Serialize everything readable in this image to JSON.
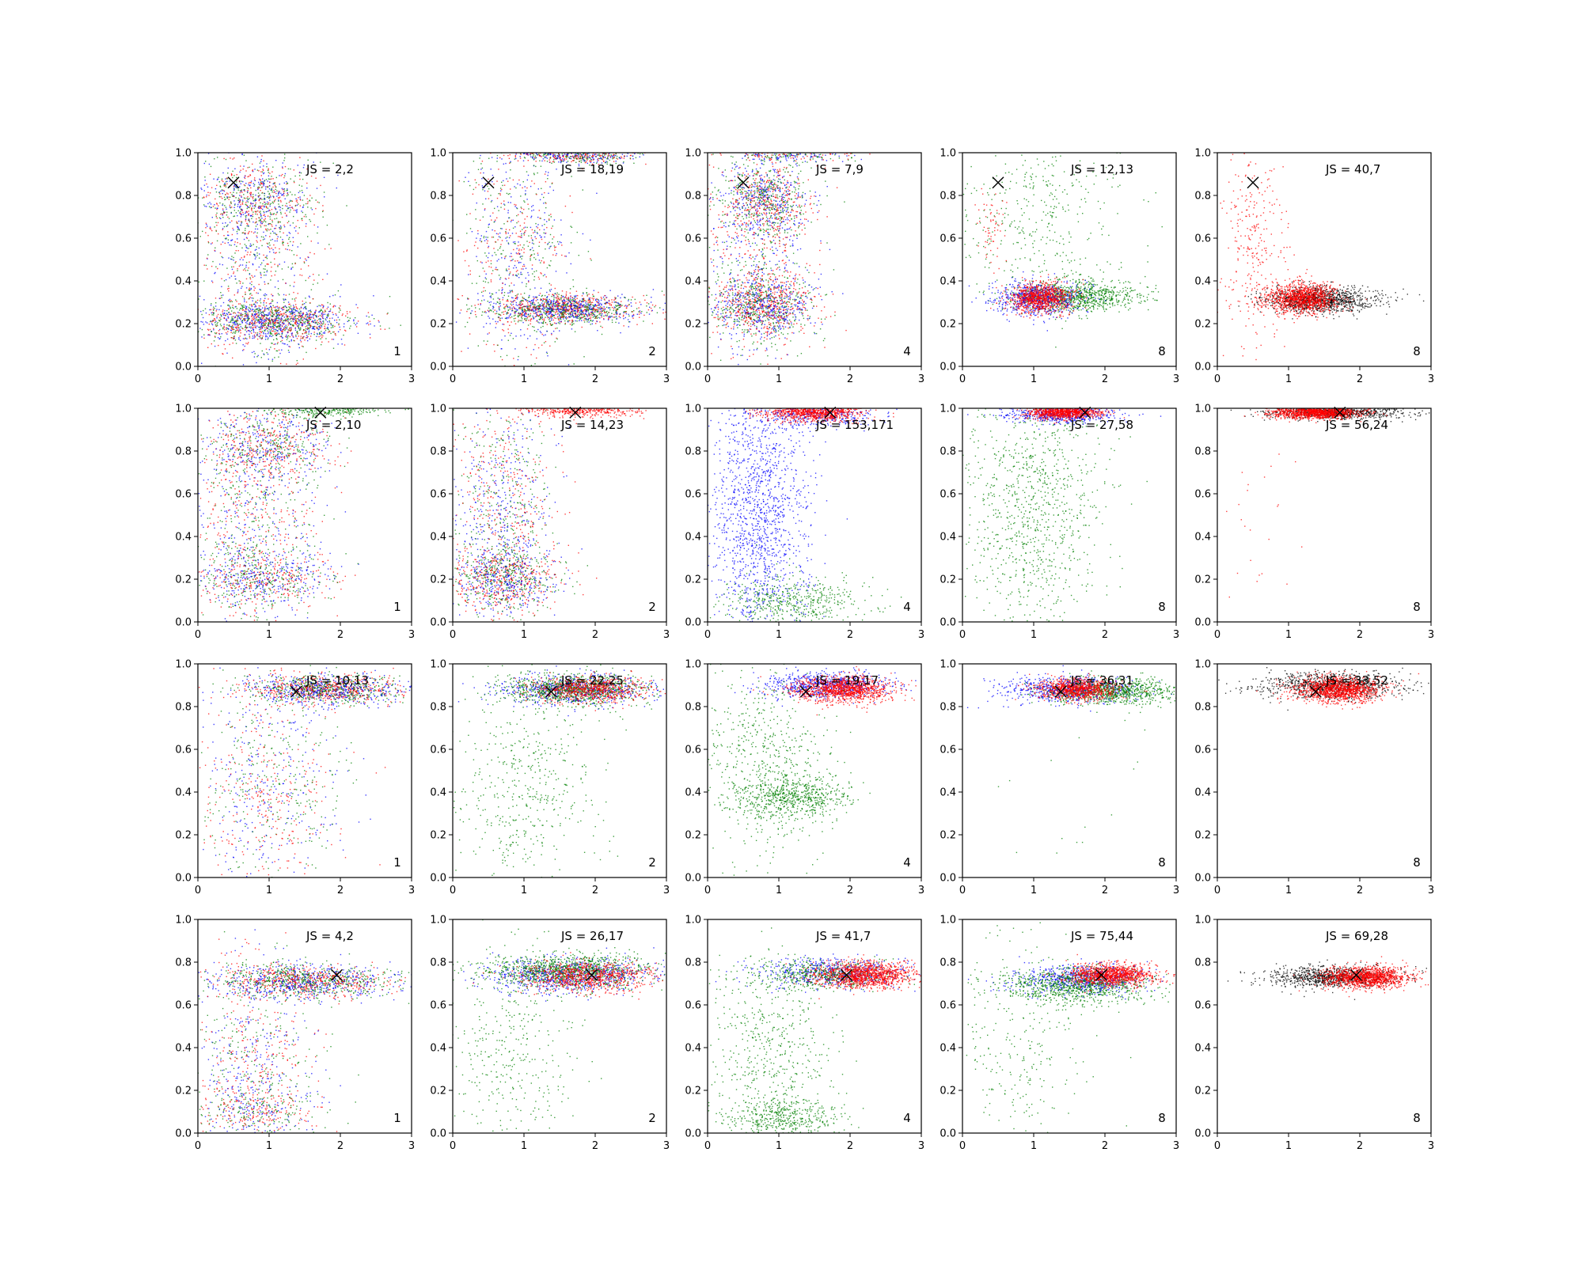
{
  "chart_data": {
    "type": "scatter",
    "layout": "4x5 grid of scatter subplots",
    "marker": "X",
    "xlim": [
      0,
      3
    ],
    "ylim": [
      0,
      1.0
    ],
    "xticks": [
      "0",
      "1",
      "2",
      "3"
    ],
    "yticks": [
      "0.0",
      "0.2",
      "0.4",
      "0.6",
      "0.8",
      "1.0"
    ],
    "grid": false,
    "series_colors": {
      "blue": "#0000ff",
      "green": "#008000",
      "red": "#ff0000",
      "black": "#000000"
    },
    "panels": [
      {
        "row": 0,
        "col": 0,
        "js_label": "JS = 2,2",
        "corner_label": "1",
        "marker_x": 0.5,
        "marker_y": 0.86,
        "clusters": [
          {
            "color": "mix_bgr",
            "cx": 1.1,
            "cy": 0.21,
            "sx": 0.55,
            "sy": 0.05,
            "n": 1500
          },
          {
            "color": "mix_bgr",
            "cx": 0.8,
            "cy": 0.78,
            "sx": 0.4,
            "sy": 0.09,
            "n": 700
          },
          {
            "color": "mix_bgr",
            "cx": 0.8,
            "cy": 0.5,
            "sx": 0.45,
            "sy": 0.28,
            "n": 900
          }
        ]
      },
      {
        "row": 0,
        "col": 1,
        "js_label": "JS = 18,19",
        "corner_label": "2",
        "marker_x": 0.5,
        "marker_y": 0.86,
        "clusters": [
          {
            "color": "mix_bgr",
            "cx": 1.6,
            "cy": 0.27,
            "sx": 0.5,
            "sy": 0.035,
            "n": 1500
          },
          {
            "color": "mix_bgr",
            "cx": 1.8,
            "cy": 0.99,
            "sx": 0.45,
            "sy": 0.02,
            "n": 600
          },
          {
            "color": "mix_bgr",
            "cx": 0.9,
            "cy": 0.55,
            "sx": 0.4,
            "sy": 0.3,
            "n": 900
          }
        ]
      },
      {
        "row": 0,
        "col": 2,
        "js_label": "JS = 7,9",
        "corner_label": "4",
        "marker_x": 0.5,
        "marker_y": 0.86,
        "clusters": [
          {
            "color": "mix_bgr",
            "cx": 0.8,
            "cy": 0.28,
            "sx": 0.35,
            "sy": 0.07,
            "n": 1200
          },
          {
            "color": "mix_bgr",
            "cx": 0.8,
            "cy": 0.78,
            "sx": 0.3,
            "sy": 0.09,
            "n": 900
          },
          {
            "color": "mix_bgr",
            "cx": 0.7,
            "cy": 0.5,
            "sx": 0.4,
            "sy": 0.3,
            "n": 900
          },
          {
            "color": "mix_bgr",
            "cx": 1.2,
            "cy": 0.99,
            "sx": 0.4,
            "sy": 0.015,
            "n": 250
          }
        ]
      },
      {
        "row": 0,
        "col": 3,
        "js_label": "JS = 12,13",
        "corner_label": "8",
        "marker_x": 0.5,
        "marker_y": 0.86,
        "clusters": [
          {
            "color": "green",
            "cx": 1.6,
            "cy": 0.33,
            "sx": 0.45,
            "sy": 0.035,
            "n": 900
          },
          {
            "color": "blue",
            "cx": 1.05,
            "cy": 0.32,
            "sx": 0.3,
            "sy": 0.04,
            "n": 700
          },
          {
            "color": "red",
            "cx": 1.1,
            "cy": 0.32,
            "sx": 0.22,
            "sy": 0.035,
            "n": 900
          },
          {
            "color": "green",
            "cx": 1.0,
            "cy": 0.7,
            "sx": 0.6,
            "sy": 0.2,
            "n": 400
          },
          {
            "color": "red",
            "cx": 0.4,
            "cy": 0.65,
            "sx": 0.1,
            "sy": 0.1,
            "n": 60
          }
        ]
      },
      {
        "row": 0,
        "col": 4,
        "js_label": "JS = 40,7",
        "corner_label": "8",
        "marker_x": 0.5,
        "marker_y": 0.86,
        "clusters": [
          {
            "color": "black",
            "cx": 1.45,
            "cy": 0.31,
            "sx": 0.38,
            "sy": 0.03,
            "n": 1100
          },
          {
            "color": "red",
            "cx": 1.2,
            "cy": 0.32,
            "sx": 0.25,
            "sy": 0.035,
            "n": 1200
          },
          {
            "color": "red",
            "cx": 0.5,
            "cy": 0.6,
            "sx": 0.25,
            "sy": 0.25,
            "n": 300
          }
        ]
      },
      {
        "row": 1,
        "col": 0,
        "js_label": "JS = 2,10",
        "corner_label": "1",
        "marker_x": 1.72,
        "marker_y": 0.98,
        "clusters": [
          {
            "color": "mix_bgr",
            "cx": 0.9,
            "cy": 0.2,
            "sx": 0.5,
            "sy": 0.06,
            "n": 700
          },
          {
            "color": "mix_bgr",
            "cx": 1.0,
            "cy": 0.82,
            "sx": 0.45,
            "sy": 0.08,
            "n": 700
          },
          {
            "color": "mix_bgr",
            "cx": 0.8,
            "cy": 0.5,
            "sx": 0.5,
            "sy": 0.3,
            "n": 1100
          },
          {
            "color": "green",
            "cx": 1.8,
            "cy": 0.99,
            "sx": 0.4,
            "sy": 0.015,
            "n": 250
          }
        ]
      },
      {
        "row": 1,
        "col": 1,
        "js_label": "JS = 14,23",
        "corner_label": "2",
        "marker_x": 1.72,
        "marker_y": 0.98,
        "clusters": [
          {
            "color": "mix_bgr",
            "cx": 0.7,
            "cy": 0.2,
            "sx": 0.4,
            "sy": 0.07,
            "n": 900
          },
          {
            "color": "mix_bgr",
            "cx": 0.7,
            "cy": 0.5,
            "sx": 0.35,
            "sy": 0.3,
            "n": 1200
          },
          {
            "color": "red",
            "cx": 1.8,
            "cy": 0.99,
            "sx": 0.4,
            "sy": 0.015,
            "n": 400
          }
        ]
      },
      {
        "row": 1,
        "col": 2,
        "js_label": "JS = 153,171",
        "corner_label": "4",
        "marker_x": 1.72,
        "marker_y": 0.98,
        "clusters": [
          {
            "color": "blue",
            "cx": 0.7,
            "cy": 0.5,
            "sx": 0.35,
            "sy": 0.3,
            "n": 1400
          },
          {
            "color": "green",
            "cx": 1.2,
            "cy": 0.1,
            "sx": 0.5,
            "sy": 0.06,
            "n": 500
          },
          {
            "color": "blue",
            "cx": 1.5,
            "cy": 0.97,
            "sx": 0.45,
            "sy": 0.03,
            "n": 400
          },
          {
            "color": "red",
            "cx": 1.5,
            "cy": 0.98,
            "sx": 0.35,
            "sy": 0.02,
            "n": 900
          }
        ]
      },
      {
        "row": 1,
        "col": 3,
        "js_label": "JS = 27,58",
        "corner_label": "8",
        "marker_x": 1.72,
        "marker_y": 0.98,
        "clusters": [
          {
            "color": "green",
            "cx": 1.0,
            "cy": 0.55,
            "sx": 0.5,
            "sy": 0.3,
            "n": 1000
          },
          {
            "color": "blue",
            "cx": 1.4,
            "cy": 0.97,
            "sx": 0.4,
            "sy": 0.02,
            "n": 500
          },
          {
            "color": "red",
            "cx": 1.4,
            "cy": 0.98,
            "sx": 0.25,
            "sy": 0.015,
            "n": 900
          }
        ]
      },
      {
        "row": 1,
        "col": 4,
        "js_label": "JS = 56,24",
        "corner_label": "8",
        "marker_x": 1.72,
        "marker_y": 0.98,
        "clusters": [
          {
            "color": "black",
            "cx": 1.7,
            "cy": 0.98,
            "sx": 0.5,
            "sy": 0.015,
            "n": 700
          },
          {
            "color": "red",
            "cx": 1.4,
            "cy": 0.98,
            "sx": 0.3,
            "sy": 0.015,
            "n": 1200
          },
          {
            "color": "red",
            "cx": 0.6,
            "cy": 0.5,
            "sx": 0.3,
            "sy": 0.25,
            "n": 25
          }
        ]
      },
      {
        "row": 2,
        "col": 0,
        "js_label": "JS = 10,13",
        "corner_label": "1",
        "marker_x": 1.38,
        "marker_y": 0.87,
        "clusters": [
          {
            "color": "mix_bgr",
            "cx": 1.8,
            "cy": 0.88,
            "sx": 0.55,
            "sy": 0.035,
            "n": 1500
          },
          {
            "color": "mix_bgr",
            "cx": 1.0,
            "cy": 0.42,
            "sx": 0.5,
            "sy": 0.25,
            "n": 900
          }
        ]
      },
      {
        "row": 2,
        "col": 1,
        "js_label": "JS = 22,25",
        "corner_label": "2",
        "marker_x": 1.38,
        "marker_y": 0.87,
        "clusters": [
          {
            "color": "blue",
            "cx": 1.7,
            "cy": 0.88,
            "sx": 0.55,
            "sy": 0.035,
            "n": 700
          },
          {
            "color": "green",
            "cx": 1.7,
            "cy": 0.88,
            "sx": 0.5,
            "sy": 0.035,
            "n": 900
          },
          {
            "color": "red",
            "cx": 1.9,
            "cy": 0.88,
            "sx": 0.4,
            "sy": 0.03,
            "n": 700
          },
          {
            "color": "green",
            "cx": 1.0,
            "cy": 0.4,
            "sx": 0.5,
            "sy": 0.25,
            "n": 500
          }
        ]
      },
      {
        "row": 2,
        "col": 2,
        "js_label": "JS = 19,17",
        "corner_label": "4",
        "marker_x": 1.38,
        "marker_y": 0.87,
        "clusters": [
          {
            "color": "blue",
            "cx": 1.7,
            "cy": 0.9,
            "sx": 0.45,
            "sy": 0.03,
            "n": 700
          },
          {
            "color": "red",
            "cx": 1.9,
            "cy": 0.88,
            "sx": 0.35,
            "sy": 0.03,
            "n": 1200
          },
          {
            "color": "green",
            "cx": 1.2,
            "cy": 0.38,
            "sx": 0.4,
            "sy": 0.05,
            "n": 600
          },
          {
            "color": "green",
            "cx": 0.8,
            "cy": 0.55,
            "sx": 0.45,
            "sy": 0.25,
            "n": 600
          }
        ]
      },
      {
        "row": 2,
        "col": 3,
        "js_label": "JS = 36,31",
        "corner_label": "8",
        "marker_x": 1.38,
        "marker_y": 0.87,
        "clusters": [
          {
            "color": "blue",
            "cx": 1.5,
            "cy": 0.88,
            "sx": 0.45,
            "sy": 0.03,
            "n": 700
          },
          {
            "color": "green",
            "cx": 2.1,
            "cy": 0.87,
            "sx": 0.45,
            "sy": 0.03,
            "n": 900
          },
          {
            "color": "red",
            "cx": 1.6,
            "cy": 0.88,
            "sx": 0.28,
            "sy": 0.025,
            "n": 900
          },
          {
            "color": "green",
            "cx": 1.3,
            "cy": 0.3,
            "sx": 0.5,
            "sy": 0.2,
            "n": 15
          }
        ]
      },
      {
        "row": 2,
        "col": 4,
        "js_label": "JS = 33,52",
        "corner_label": "8",
        "marker_x": 1.38,
        "marker_y": 0.87,
        "clusters": [
          {
            "color": "black",
            "cx": 1.6,
            "cy": 0.9,
            "sx": 0.5,
            "sy": 0.03,
            "n": 900
          },
          {
            "color": "red",
            "cx": 1.7,
            "cy": 0.88,
            "sx": 0.3,
            "sy": 0.03,
            "n": 1300
          }
        ]
      },
      {
        "row": 3,
        "col": 0,
        "js_label": "JS = 4,2",
        "corner_label": "1",
        "marker_x": 1.95,
        "marker_y": 0.74,
        "clusters": [
          {
            "color": "mix_bgr",
            "cx": 1.5,
            "cy": 0.71,
            "sx": 0.6,
            "sy": 0.04,
            "n": 1500
          },
          {
            "color": "mix_bgr",
            "cx": 0.8,
            "cy": 0.3,
            "sx": 0.45,
            "sy": 0.25,
            "n": 900
          },
          {
            "color": "mix_bgr",
            "cx": 0.8,
            "cy": 0.1,
            "sx": 0.4,
            "sy": 0.05,
            "n": 300
          }
        ]
      },
      {
        "row": 3,
        "col": 1,
        "js_label": "JS = 26,17",
        "corner_label": "2",
        "marker_x": 1.95,
        "marker_y": 0.74,
        "clusters": [
          {
            "color": "blue",
            "cx": 1.6,
            "cy": 0.74,
            "sx": 0.6,
            "sy": 0.04,
            "n": 800
          },
          {
            "color": "green",
            "cx": 1.6,
            "cy": 0.76,
            "sx": 0.55,
            "sy": 0.04,
            "n": 1000
          },
          {
            "color": "red",
            "cx": 1.9,
            "cy": 0.73,
            "sx": 0.45,
            "sy": 0.035,
            "n": 800
          },
          {
            "color": "green",
            "cx": 0.8,
            "cy": 0.35,
            "sx": 0.45,
            "sy": 0.3,
            "n": 400
          }
        ]
      },
      {
        "row": 3,
        "col": 2,
        "js_label": "JS = 41,7",
        "corner_label": "4",
        "marker_x": 1.95,
        "marker_y": 0.74,
        "clusters": [
          {
            "color": "blue",
            "cx": 1.8,
            "cy": 0.75,
            "sx": 0.5,
            "sy": 0.035,
            "n": 600
          },
          {
            "color": "green",
            "cx": 1.6,
            "cy": 0.74,
            "sx": 0.5,
            "sy": 0.035,
            "n": 500
          },
          {
            "color": "red",
            "cx": 2.2,
            "cy": 0.74,
            "sx": 0.35,
            "sy": 0.03,
            "n": 1200
          },
          {
            "color": "green",
            "cx": 0.9,
            "cy": 0.35,
            "sx": 0.45,
            "sy": 0.25,
            "n": 600
          },
          {
            "color": "green",
            "cx": 1.0,
            "cy": 0.07,
            "sx": 0.4,
            "sy": 0.04,
            "n": 400
          }
        ]
      },
      {
        "row": 3,
        "col": 3,
        "js_label": "JS = 75,44",
        "corner_label": "8",
        "marker_x": 1.95,
        "marker_y": 0.74,
        "clusters": [
          {
            "color": "blue",
            "cx": 1.7,
            "cy": 0.72,
            "sx": 0.45,
            "sy": 0.035,
            "n": 700
          },
          {
            "color": "green",
            "cx": 1.6,
            "cy": 0.69,
            "sx": 0.5,
            "sy": 0.04,
            "n": 900
          },
          {
            "color": "red",
            "cx": 2.1,
            "cy": 0.74,
            "sx": 0.3,
            "sy": 0.025,
            "n": 1100
          },
          {
            "color": "green",
            "cx": 0.8,
            "cy": 0.4,
            "sx": 0.45,
            "sy": 0.3,
            "n": 300
          }
        ]
      },
      {
        "row": 3,
        "col": 4,
        "js_label": "JS = 69,28",
        "corner_label": "8",
        "marker_x": 1.95,
        "marker_y": 0.74,
        "clusters": [
          {
            "color": "black",
            "cx": 1.6,
            "cy": 0.73,
            "sx": 0.45,
            "sy": 0.025,
            "n": 900
          },
          {
            "color": "red",
            "cx": 2.1,
            "cy": 0.73,
            "sx": 0.3,
            "sy": 0.025,
            "n": 1300
          }
        ]
      }
    ]
  }
}
